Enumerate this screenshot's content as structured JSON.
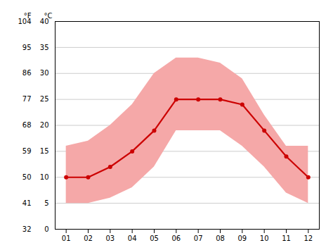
{
  "chart_data": {
    "type": "line",
    "x": [
      1,
      2,
      3,
      4,
      5,
      6,
      7,
      8,
      9,
      10,
      11,
      12
    ],
    "xlim": [
      0.5,
      12.5
    ],
    "xticks": [
      {
        "value": 1,
        "label": "01"
      },
      {
        "value": 2,
        "label": "02"
      },
      {
        "value": 3,
        "label": "03"
      },
      {
        "value": 4,
        "label": "04"
      },
      {
        "value": 5,
        "label": "05"
      },
      {
        "value": 6,
        "label": "06"
      },
      {
        "value": 7,
        "label": "07"
      },
      {
        "value": 8,
        "label": "08"
      },
      {
        "value": 9,
        "label": "09"
      },
      {
        "value": 10,
        "label": "10"
      },
      {
        "value": 11,
        "label": "11"
      },
      {
        "value": 12,
        "label": "12"
      }
    ],
    "ylim": [
      0,
      40
    ],
    "yticks": [
      0,
      5,
      10,
      15,
      20,
      25,
      30,
      35,
      40
    ],
    "y_label": "°C",
    "y2lim": [
      32,
      104
    ],
    "y2ticks": [
      32,
      41,
      50,
      59,
      68,
      77,
      86,
      95,
      104
    ],
    "y2_label": "°F",
    "grid": true,
    "series": [
      {
        "type": "area",
        "color": "#f5a8a8",
        "low": [
          5,
          5,
          6,
          8,
          12,
          19,
          19,
          19,
          16,
          12,
          7,
          5
        ],
        "high": [
          16,
          17,
          20,
          24,
          30,
          33,
          33,
          32,
          29,
          22,
          16,
          16
        ]
      },
      {
        "type": "line",
        "color": "#cc0000",
        "marker": "o",
        "values": [
          10,
          10,
          12,
          15,
          19,
          25,
          25,
          25,
          24,
          19,
          14,
          10
        ]
      }
    ]
  }
}
